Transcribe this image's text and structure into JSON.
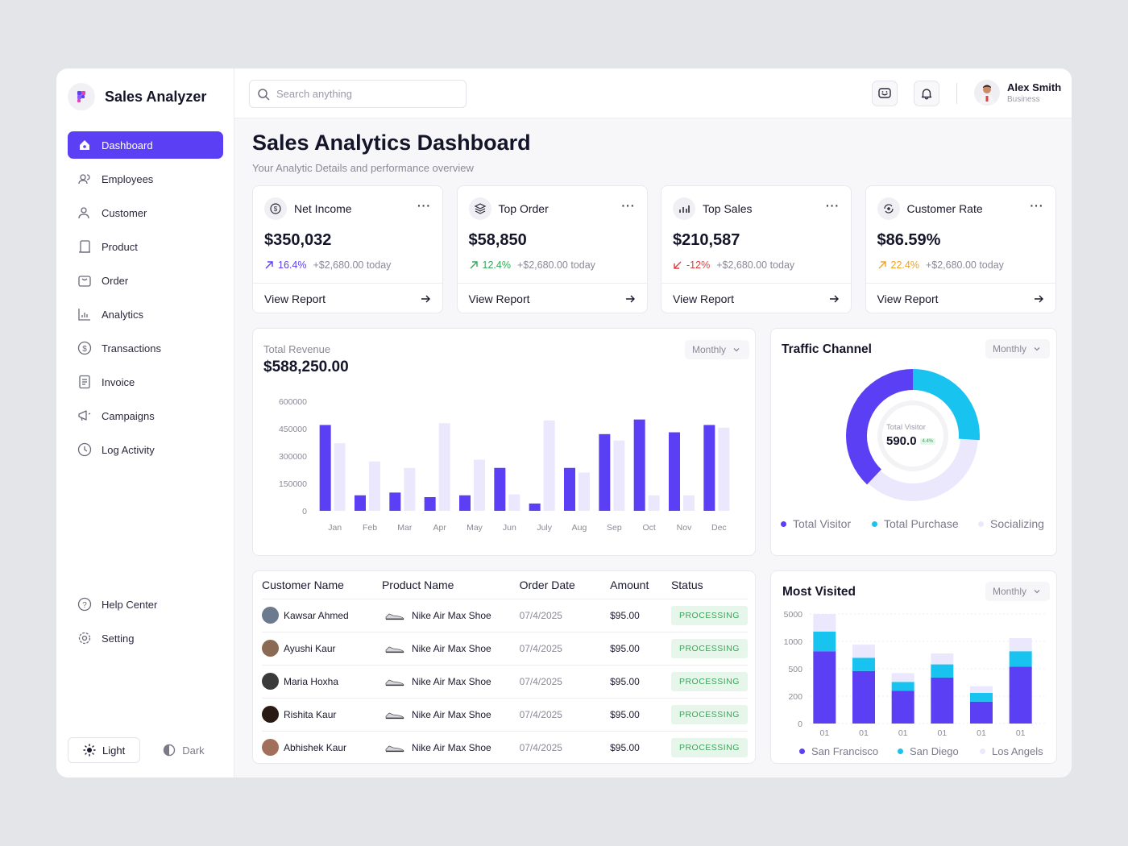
{
  "app": {
    "name": "Sales Analyzer"
  },
  "colors": {
    "primary": "#5b3ff5",
    "primary_light": "#ebe8fd",
    "cyan": "#19c3f0",
    "success": "#3aa55a",
    "danger": "#e03b3b",
    "warning": "#f0a320"
  },
  "sidebar": {
    "items": [
      {
        "label": "Dashboard",
        "icon": "home-icon",
        "active": true
      },
      {
        "label": "Employees",
        "icon": "users-icon"
      },
      {
        "label": "Customer",
        "icon": "user-icon"
      },
      {
        "label": "Product",
        "icon": "box-icon"
      },
      {
        "label": "Order",
        "icon": "shopping-bag-icon"
      },
      {
        "label": "Analytics",
        "icon": "chart-icon"
      },
      {
        "label": "Transactions",
        "icon": "dollar-icon"
      },
      {
        "label": "Invoice",
        "icon": "invoice-icon"
      },
      {
        "label": "Campaigns",
        "icon": "megaphone-icon"
      },
      {
        "label": "Log Activity",
        "icon": "clock-icon"
      }
    ],
    "bottom": [
      {
        "label": "Help Center",
        "icon": "help-icon"
      },
      {
        "label": "Setting",
        "icon": "gear-icon"
      }
    ],
    "theme": {
      "light": "Light",
      "dark": "Dark"
    }
  },
  "topbar": {
    "search_placeholder": "Search anything",
    "user": {
      "name": "Alex Smith",
      "role": "Business"
    }
  },
  "page": {
    "title": "Sales Analytics Dashboard",
    "subtitle": "Your Analytic Details and performance overview"
  },
  "kpis": [
    {
      "label": "Net Income",
      "value": "$350,032",
      "pct": "16.4%",
      "today": "+$2,680.00 today",
      "trend": "up",
      "color": "#5b3ff5",
      "link": "View Report",
      "icon": "dollar-circle-icon"
    },
    {
      "label": "Top Order",
      "value": "$58,850",
      "pct": "12.4%",
      "today": "+$2,680.00 today",
      "trend": "up",
      "color": "#3aa55a",
      "link": "View Report",
      "icon": "box-stack-icon"
    },
    {
      "label": "Top Sales",
      "value": "$210,587",
      "pct": "-12%",
      "today": "+$2,680.00 today",
      "trend": "down",
      "color": "#e03b3b",
      "link": "View Report",
      "icon": "bar-chart-icon"
    },
    {
      "label": "Customer Rate",
      "value": "$86.59%",
      "pct": "22.4%",
      "today": "+$2,680.00 today",
      "trend": "up",
      "color": "#f0a320",
      "link": "View Report",
      "icon": "refresh-user-icon"
    }
  ],
  "revenue": {
    "label": "Total Revenue",
    "total": "$588,250.00",
    "period": "Monthly",
    "chart_data": {
      "type": "bar",
      "title": "Total Revenue",
      "categories": [
        "Jan",
        "Feb",
        "Mar",
        "Apr",
        "May",
        "Jun",
        "July",
        "Aug",
        "Sep",
        "Oct",
        "Nov",
        "Dec"
      ],
      "series": [
        {
          "values": [
            470000,
            85000,
            100000,
            75000,
            85000,
            235000,
            40000,
            235000,
            420000,
            500000,
            430000,
            470000
          ]
        },
        {
          "values": [
            370000,
            270000,
            235000,
            480000,
            280000,
            90000,
            495000,
            210000,
            385000,
            85000,
            85000,
            455000
          ]
        }
      ],
      "yticks": [
        "0",
        "150000",
        "300000",
        "450000",
        "600000"
      ],
      "ylim": [
        0,
        600000
      ],
      "grid": false
    }
  },
  "traffic": {
    "title": "Traffic Channel",
    "period": "Monthly",
    "center_label": "Total Visitor",
    "center_value": "590.0",
    "center_badge": "4.4%",
    "chart_data": {
      "type": "pie",
      "labels": [
        "Total Visitor",
        "Total Purchase",
        "Socializing"
      ],
      "values": [
        38,
        26,
        36
      ],
      "colors": [
        "#5b3ff5",
        "#19c3f0",
        "#ebe8fd"
      ]
    },
    "legend": [
      "Total Visitor",
      "Total Purchase",
      "Socializing"
    ]
  },
  "orders": {
    "columns": [
      "Customer Name",
      "Product Name",
      "Order Date",
      "Amount",
      "Status"
    ],
    "rows": [
      {
        "customer": "Kawsar Ahmed",
        "product": "Nike Air Max Shoe",
        "date": "07/4/2025",
        "amount": "$95.00",
        "status": "PROCESSING"
      },
      {
        "customer": "Ayushi Kaur",
        "product": "Nike Air Max Shoe",
        "date": "07/4/2025",
        "amount": "$95.00",
        "status": "PROCESSING"
      },
      {
        "customer": "Maria Hoxha",
        "product": "Nike Air Max Shoe",
        "date": "07/4/2025",
        "amount": "$95.00",
        "status": "PROCESSING"
      },
      {
        "customer": "Rishita Kaur",
        "product": "Nike Air Max Shoe",
        "date": "07/4/2025",
        "amount": "$95.00",
        "status": "PROCESSING"
      },
      {
        "customer": "Abhishek Kaur",
        "product": "Nike Air Max Shoe",
        "date": "07/4/2025",
        "amount": "$95.00",
        "status": "PROCESSING"
      }
    ]
  },
  "visited": {
    "title": "Most Visited",
    "period": "Monthly",
    "chart_data": {
      "type": "bar",
      "stacked": true,
      "categories": [
        "01",
        "01",
        "01",
        "01",
        "01",
        "01"
      ],
      "yticks": [
        "0",
        "200",
        "500",
        "1000",
        "5000"
      ],
      "series": [
        {
          "name": "San Francisco",
          "values": [
            3.3,
            2.4,
            1.5,
            2.1,
            1.0,
            2.6
          ]
        },
        {
          "name": "San Diego",
          "values": [
            0.9,
            0.6,
            0.4,
            0.6,
            0.4,
            0.7
          ]
        },
        {
          "name": "Los Angels",
          "values": [
            0.8,
            0.6,
            0.4,
            0.5,
            0.3,
            0.6
          ]
        }
      ],
      "ylim": [
        0,
        5
      ]
    },
    "legend": [
      "San Francisco",
      "San Diego",
      "Los Angels"
    ]
  }
}
